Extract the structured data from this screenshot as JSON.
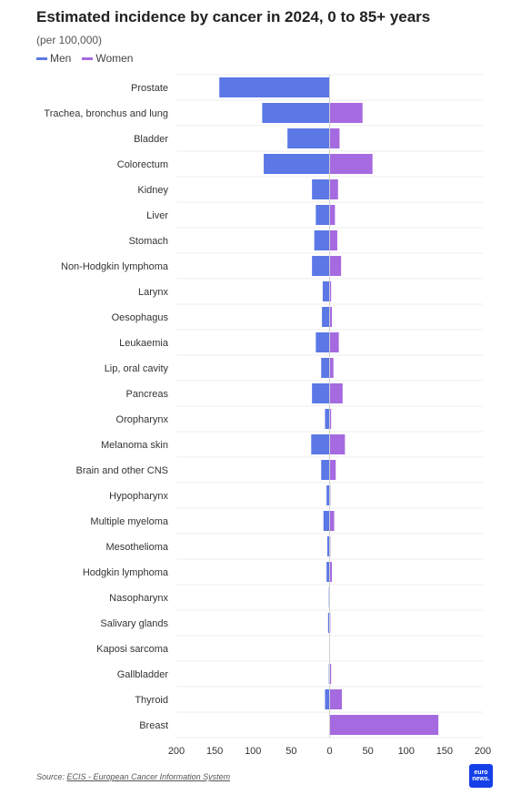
{
  "header": {
    "title": "Estimated incidence by cancer in 2024, 0 to 85+ years",
    "subtitle": "(per 100,000)"
  },
  "legend": [
    {
      "label": "Men",
      "color": "#5b78e6"
    },
    {
      "label": "Women",
      "color": "#a56ae0"
    }
  ],
  "footer": {
    "source_prefix": "Source: ",
    "source_link": "ECIS - European Cancer Information System",
    "logo_line1": "euro",
    "logo_line2": "news."
  },
  "chart_data": {
    "type": "bar",
    "orientation": "horizontal",
    "xlim": [
      -200,
      200
    ],
    "x_ticks": [
      -200,
      -150,
      -100,
      -50,
      0,
      50,
      100,
      150,
      200
    ],
    "x_tick_labels": [
      "200",
      "150",
      "100",
      "50",
      "0",
      "50",
      "100",
      "150",
      "200"
    ],
    "grid": true,
    "categories": [
      "Prostate",
      "Trachea, bronchus and lung",
      "Bladder",
      "Colorectum",
      "Kidney",
      "Liver",
      "Stomach",
      "Non-Hodgkin lymphoma",
      "Larynx",
      "Oesophagus",
      "Leukaemia",
      "Lip, oral cavity",
      "Pancreas",
      "Oropharynx",
      "Melanoma skin",
      "Brain and other CNS",
      "Hypopharynx",
      "Multiple myeloma",
      "Mesothelioma",
      "Hodgkin lymphoma",
      "Nasopharynx",
      "Salivary glands",
      "Kaposi sarcoma",
      "Gallbladder",
      "Thyroid",
      "Breast"
    ],
    "series": [
      {
        "name": "Men",
        "color": "#5b78e6",
        "values": [
          144,
          88,
          55,
          86,
          23,
          18,
          20,
          23,
          9,
          10,
          18,
          11,
          23,
          6,
          24,
          11,
          4,
          8,
          3,
          4,
          1,
          2,
          0.5,
          1,
          6,
          0
        ]
      },
      {
        "name": "Women",
        "color": "#a56ae0",
        "values": [
          0,
          43,
          13,
          56,
          11,
          7,
          10,
          15,
          2,
          3,
          12,
          5,
          17,
          2,
          20,
          8,
          1,
          6,
          1,
          3,
          0.5,
          1,
          0.3,
          2,
          16,
          142
        ]
      }
    ]
  }
}
